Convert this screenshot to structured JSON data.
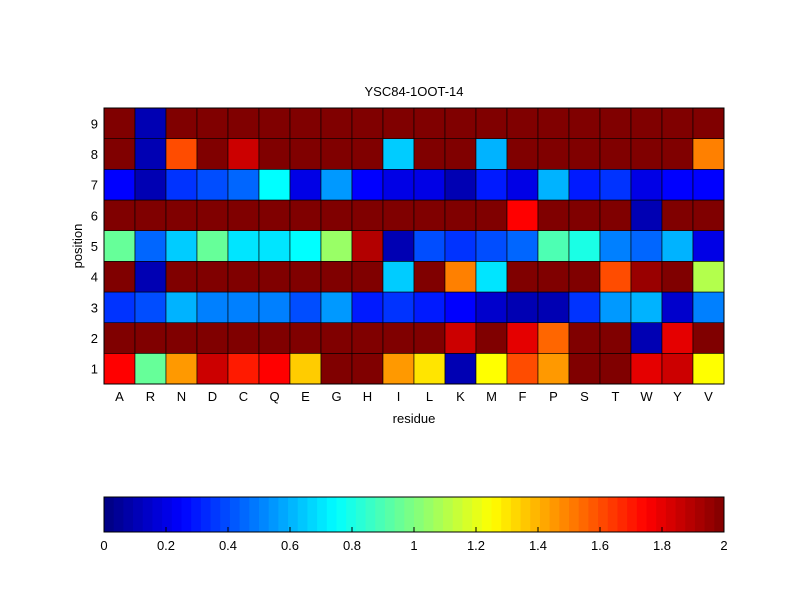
{
  "chart_data": {
    "type": "heatmap",
    "title": "YSC84-1OOT-14",
    "xlabel": "residue",
    "ylabel": "position",
    "x_categories": [
      "A",
      "R",
      "N",
      "D",
      "C",
      "Q",
      "E",
      "G",
      "H",
      "I",
      "L",
      "K",
      "M",
      "F",
      "P",
      "S",
      "T",
      "W",
      "Y",
      "V"
    ],
    "y_categories": [
      "1",
      "2",
      "3",
      "4",
      "5",
      "6",
      "7",
      "8",
      "9"
    ],
    "values": [
      [
        1.75,
        0.95,
        1.45,
        1.85,
        1.7,
        1.75,
        1.35,
        2.0,
        2.0,
        1.45,
        1.3,
        0.1,
        1.25,
        1.6,
        1.45,
        2.0,
        2.0,
        1.8,
        1.85,
        1.25
      ],
      [
        2.0,
        2.0,
        2.0,
        2.0,
        2.0,
        2.0,
        2.0,
        2.0,
        2.0,
        2.0,
        2.0,
        1.85,
        2.0,
        1.8,
        1.55,
        2.0,
        2.0,
        0.1,
        1.8,
        2.0
      ],
      [
        0.35,
        0.4,
        0.6,
        0.5,
        0.5,
        0.5,
        0.4,
        0.55,
        0.3,
        0.35,
        0.3,
        0.25,
        0.15,
        0.1,
        0.1,
        0.35,
        0.55,
        0.6,
        0.15,
        0.5
      ],
      [
        2.0,
        0.1,
        2.0,
        2.0,
        2.0,
        2.0,
        2.0,
        2.0,
        2.0,
        0.65,
        2.0,
        1.5,
        0.7,
        2.0,
        2.0,
        2.0,
        1.6,
        1.95,
        2.0,
        1.1
      ],
      [
        0.95,
        0.45,
        0.65,
        0.95,
        0.7,
        0.7,
        0.75,
        1.05,
        1.9,
        0.1,
        0.4,
        0.35,
        0.4,
        0.45,
        0.9,
        0.8,
        0.5,
        0.45,
        0.6,
        0.2
      ],
      [
        2.0,
        2.0,
        2.0,
        2.0,
        2.0,
        2.0,
        2.0,
        2.0,
        2.0,
        2.0,
        2.0,
        2.0,
        2.0,
        1.75,
        2.0,
        2.0,
        2.0,
        0.1,
        2.0,
        2.0
      ],
      [
        0.25,
        0.1,
        0.35,
        0.4,
        0.45,
        0.75,
        0.2,
        0.55,
        0.25,
        0.2,
        0.2,
        0.1,
        0.3,
        0.2,
        0.6,
        0.3,
        0.35,
        0.2,
        0.25,
        0.25
      ],
      [
        2.0,
        0.1,
        1.6,
        2.0,
        1.85,
        2.0,
        2.0,
        2.0,
        2.0,
        0.65,
        2.0,
        2.0,
        0.6,
        2.0,
        2.0,
        2.0,
        2.0,
        2.0,
        2.0,
        1.5
      ],
      [
        2.0,
        0.1,
        2.0,
        2.0,
        2.0,
        2.0,
        2.0,
        2.0,
        2.0,
        2.0,
        2.0,
        2.0,
        2.0,
        2.0,
        2.0,
        2.0,
        2.0,
        2.0,
        2.0,
        2.0
      ]
    ],
    "colormap": "jet",
    "color_range": [
      0,
      2
    ],
    "colorbar": {
      "orientation": "horizontal",
      "placement": "bottom",
      "ticks": [
        0,
        0.2,
        0.4,
        0.6,
        0.8,
        1,
        1.2,
        1.4,
        1.6,
        1.8,
        2
      ],
      "tick_labels": [
        "0",
        "0.2",
        "0.4",
        "0.6",
        "0.8",
        "1",
        "1.2",
        "1.4",
        "1.6",
        "1.8",
        "2"
      ]
    },
    "grid": false
  }
}
